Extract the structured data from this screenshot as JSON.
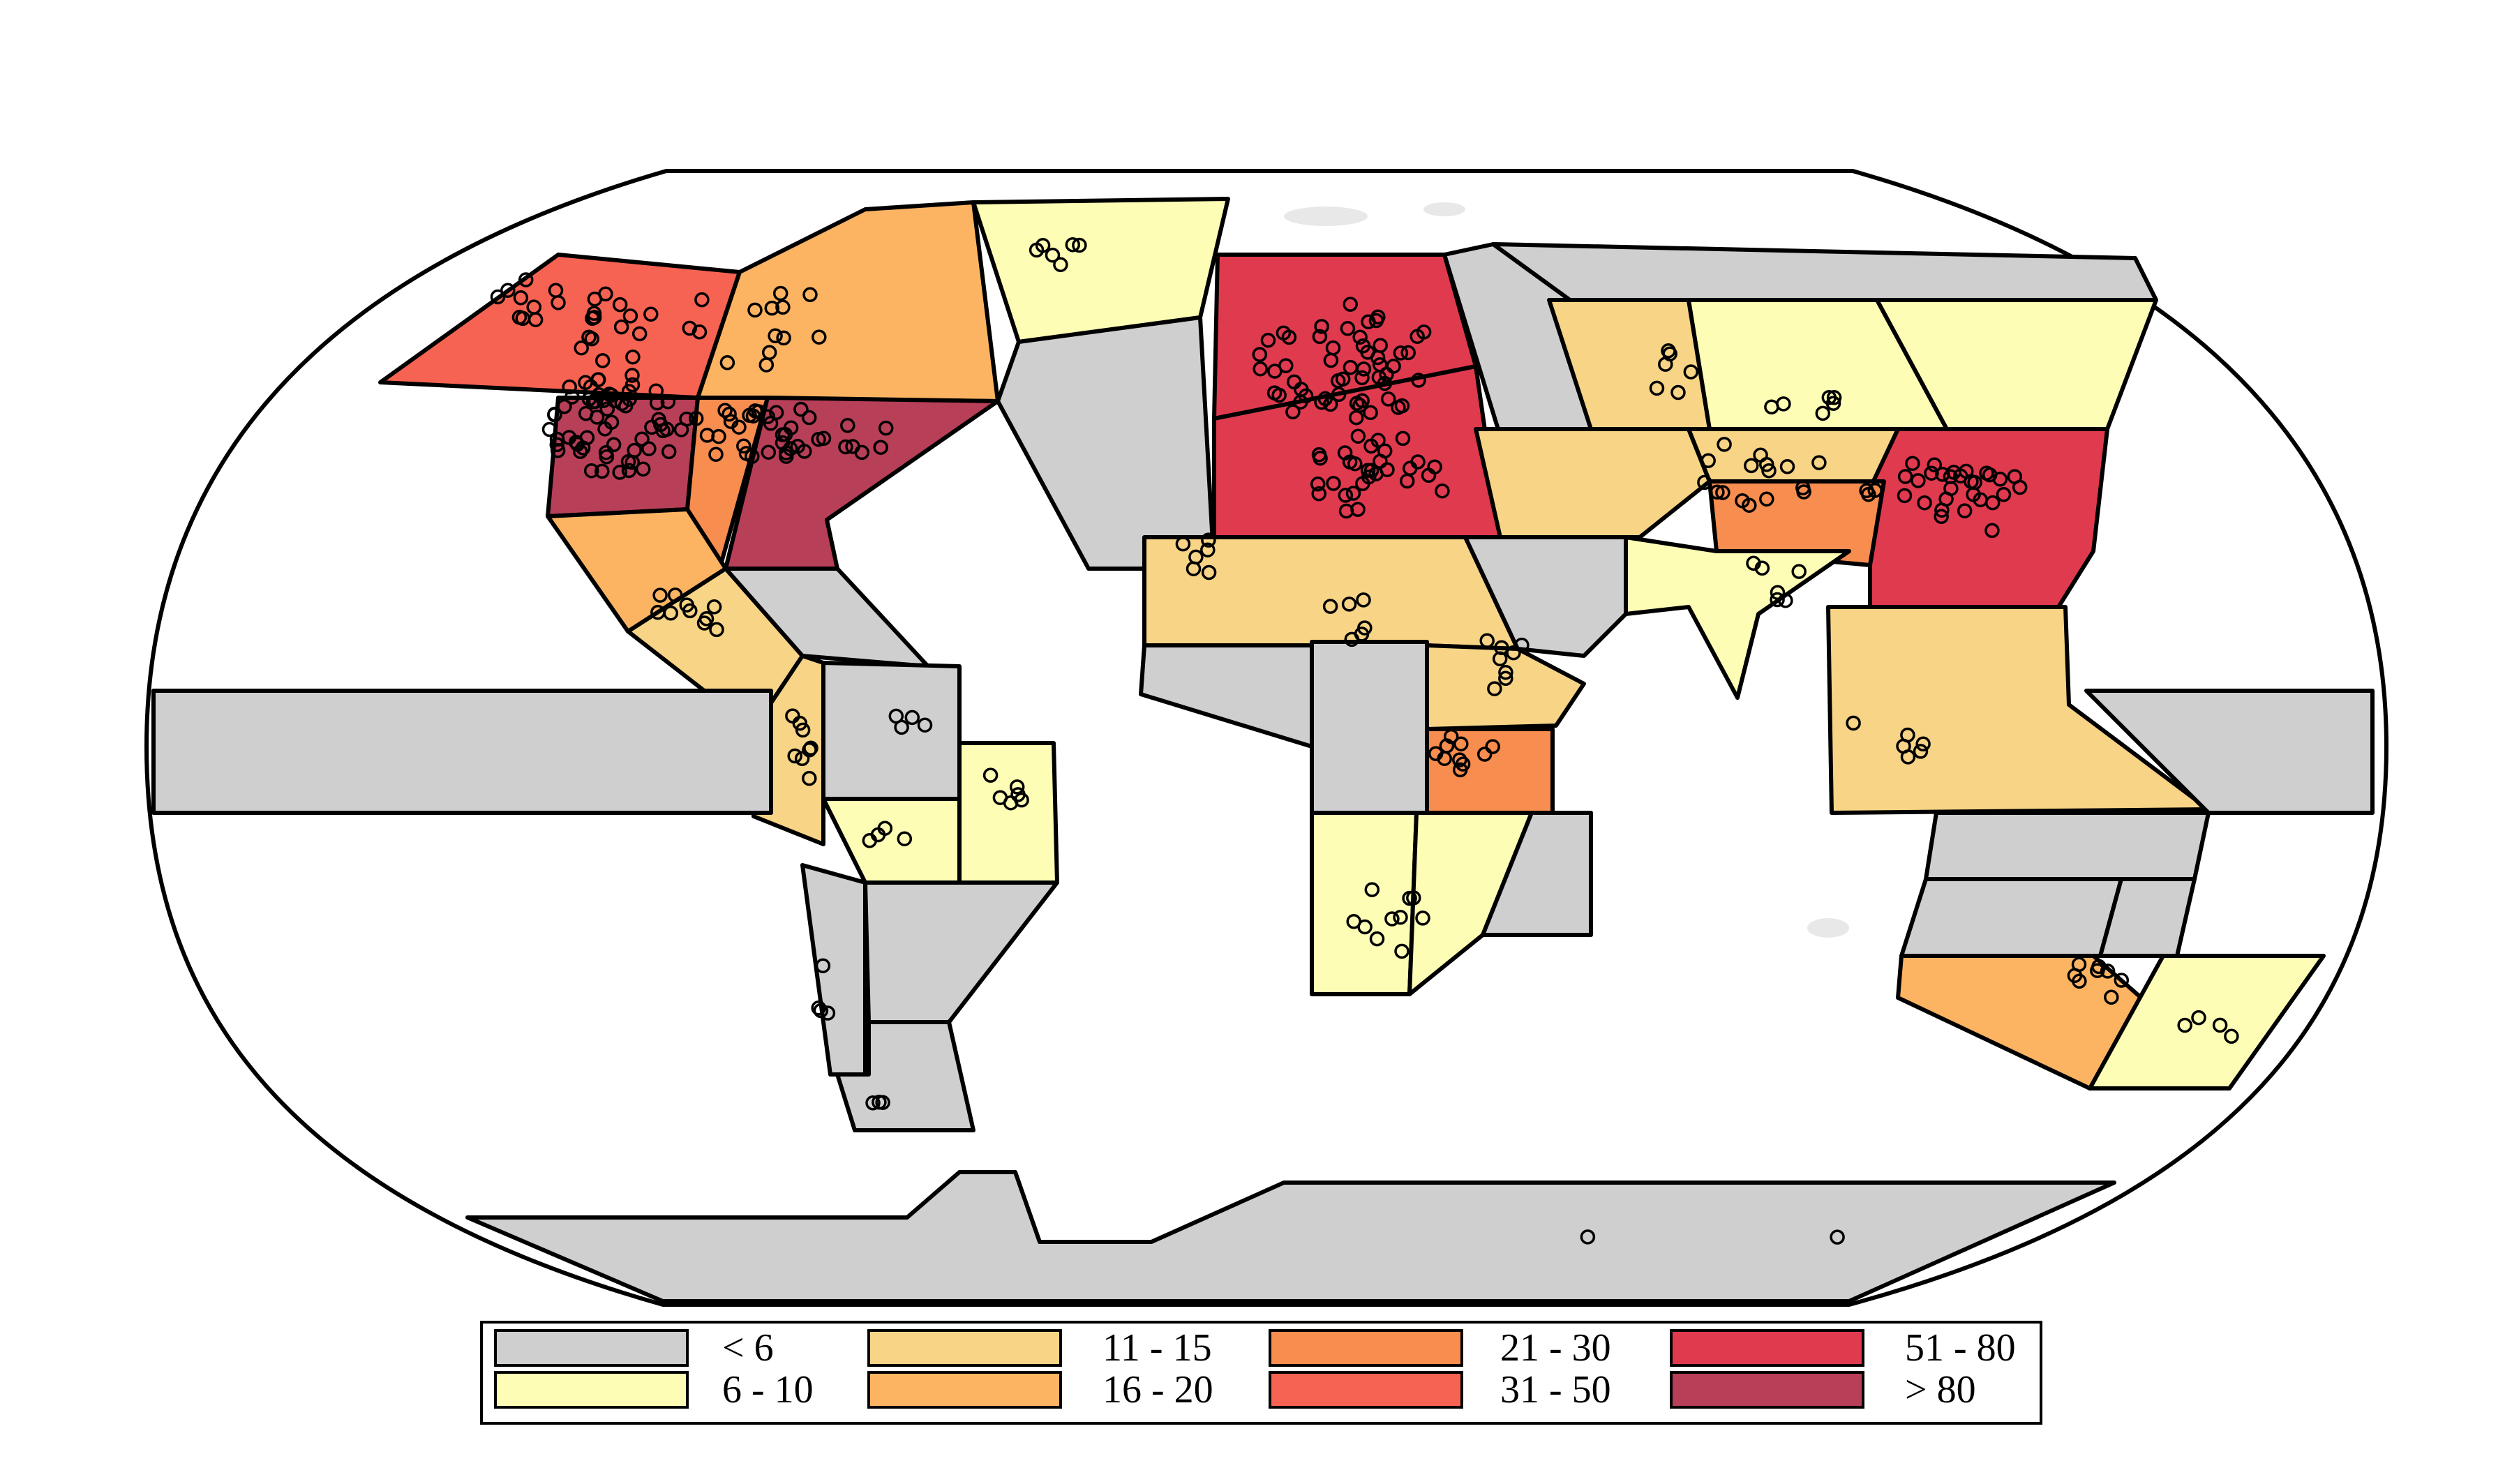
{
  "legend": {
    "items": [
      {
        "label": "< 6",
        "color": "#cfcfcf"
      },
      {
        "label": "6 - 10",
        "color": "#fdfdb5"
      },
      {
        "label": "11 - 15",
        "color": "#f7d486"
      },
      {
        "label": "16 - 20",
        "color": "#fcb463"
      },
      {
        "label": "21 - 30",
        "color": "#f78d4f"
      },
      {
        "label": "31 - 50",
        "color": "#f76352"
      },
      {
        "label": "51 - 80",
        "color": "#e03a4f"
      },
      {
        "label": "> 80",
        "color": "#b83f58"
      }
    ]
  },
  "colors": {
    "ocean": "#ffffff",
    "land": "#cfcfcf",
    "outline": "#000000"
  }
}
